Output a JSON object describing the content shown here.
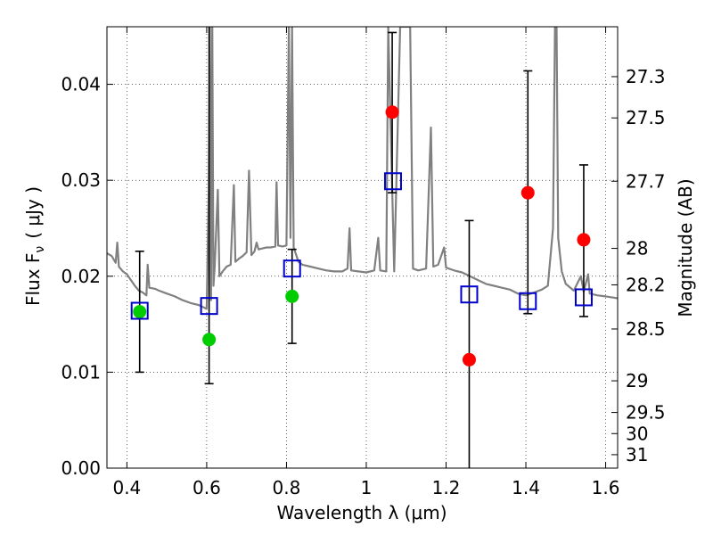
{
  "chart_data": {
    "type": "scatter",
    "xlabel": "Wavelength  λ (μm)",
    "ylabel_left": "Flux  F",
    "ylabel_left_sub": "ν",
    "ylabel_left_unit": "( μJy )",
    "ylabel_right": "Magnitude (AB)",
    "xlim": [
      0.35,
      1.63
    ],
    "ylim": [
      0.0,
      0.046
    ],
    "grid": true,
    "x_ticks": [
      {
        "value": 0.4,
        "label": "0.4"
      },
      {
        "value": 0.6,
        "label": "0.6"
      },
      {
        "value": 0.8,
        "label": "0.8"
      },
      {
        "value": 1.0,
        "label": "1"
      },
      {
        "value": 1.2,
        "label": "1.2"
      },
      {
        "value": 1.4,
        "label": "1.4"
      },
      {
        "value": 1.6,
        "label": "1.6"
      }
    ],
    "y_ticks": [
      {
        "value": 0.0,
        "label": "0.00"
      },
      {
        "value": 0.01,
        "label": "0.01"
      },
      {
        "value": 0.02,
        "label": "0.02"
      },
      {
        "value": 0.03,
        "label": "0.03"
      },
      {
        "value": 0.04,
        "label": "0.04"
      }
    ],
    "right_ticks": [
      {
        "label": "27.3",
        "flux": 0.0408
      },
      {
        "label": "27.5",
        "flux": 0.0365
      },
      {
        "label": "27.7",
        "flux": 0.0299
      },
      {
        "label": "28",
        "flux": 0.0229
      },
      {
        "label": "28.2",
        "flux": 0.0191
      },
      {
        "label": "28.5",
        "flux": 0.0145
      },
      {
        "label": "29",
        "flux": 0.0091
      },
      {
        "label": "29.5",
        "flux": 0.0058
      },
      {
        "label": "30",
        "flux": 0.0036
      },
      {
        "label": "31",
        "flux": 0.0014
      }
    ],
    "series": [
      {
        "kind": "spectrum",
        "color": "#808080",
        "points": [
          [
            0.35,
            0.0224
          ],
          [
            0.362,
            0.0221
          ],
          [
            0.372,
            0.0214
          ],
          [
            0.376,
            0.0235
          ],
          [
            0.38,
            0.021
          ],
          [
            0.39,
            0.0205
          ],
          [
            0.4,
            0.0202
          ],
          [
            0.41,
            0.0196
          ],
          [
            0.42,
            0.019
          ],
          [
            0.43,
            0.0185
          ],
          [
            0.44,
            0.0183
          ],
          [
            0.449,
            0.018
          ],
          [
            0.452,
            0.0212
          ],
          [
            0.456,
            0.0188
          ],
          [
            0.47,
            0.0187
          ],
          [
            0.48,
            0.0185
          ],
          [
            0.5,
            0.0182
          ],
          [
            0.52,
            0.0179
          ],
          [
            0.54,
            0.0175
          ],
          [
            0.56,
            0.0172
          ],
          [
            0.58,
            0.017
          ],
          [
            0.59,
            0.0168
          ],
          [
            0.6,
            0.0166
          ],
          [
            0.605,
            0.029
          ],
          [
            0.608,
            0.046
          ],
          [
            0.611,
            0.0175
          ],
          [
            0.614,
            0.046
          ],
          [
            0.617,
            0.019
          ],
          [
            0.62,
            0.021
          ],
          [
            0.628,
            0.029
          ],
          [
            0.632,
            0.02
          ],
          [
            0.64,
            0.0205
          ],
          [
            0.65,
            0.021
          ],
          [
            0.66,
            0.0212
          ],
          [
            0.668,
            0.0295
          ],
          [
            0.672,
            0.0215
          ],
          [
            0.68,
            0.0218
          ],
          [
            0.69,
            0.0221
          ],
          [
            0.7,
            0.0225
          ],
          [
            0.706,
            0.031
          ],
          [
            0.712,
            0.0222
          ],
          [
            0.72,
            0.0226
          ],
          [
            0.725,
            0.0235
          ],
          [
            0.73,
            0.0228
          ],
          [
            0.74,
            0.0229
          ],
          [
            0.75,
            0.023
          ],
          [
            0.76,
            0.023
          ],
          [
            0.772,
            0.0231
          ],
          [
            0.775,
            0.0298
          ],
          [
            0.779,
            0.0232
          ],
          [
            0.79,
            0.0231
          ],
          [
            0.8,
            0.0232
          ],
          [
            0.806,
            0.046
          ],
          [
            0.81,
            0.024
          ],
          [
            0.814,
            0.046
          ],
          [
            0.818,
            0.023
          ],
          [
            0.83,
            0.0215
          ],
          [
            0.84,
            0.0212
          ],
          [
            0.86,
            0.021
          ],
          [
            0.88,
            0.0208
          ],
          [
            0.9,
            0.0206
          ],
          [
            0.92,
            0.0205
          ],
          [
            0.94,
            0.0205
          ],
          [
            0.953,
            0.0208
          ],
          [
            0.958,
            0.025
          ],
          [
            0.962,
            0.0206
          ],
          [
            0.98,
            0.0205
          ],
          [
            1.0,
            0.0204
          ],
          [
            1.02,
            0.0206
          ],
          [
            1.03,
            0.024
          ],
          [
            1.035,
            0.0206
          ],
          [
            1.05,
            0.0205
          ],
          [
            1.055,
            0.046
          ],
          [
            1.07,
            0.0205
          ],
          [
            1.085,
            0.046
          ],
          [
            1.095,
            0.046
          ],
          [
            1.11,
            0.046
          ],
          [
            1.117,
            0.0208
          ],
          [
            1.13,
            0.0206
          ],
          [
            1.15,
            0.0208
          ],
          [
            1.162,
            0.0355
          ],
          [
            1.168,
            0.021
          ],
          [
            1.18,
            0.0212
          ],
          [
            1.195,
            0.023
          ],
          [
            1.2,
            0.0209
          ],
          [
            1.22,
            0.0206
          ],
          [
            1.24,
            0.0204
          ],
          [
            1.26,
            0.02
          ],
          [
            1.28,
            0.0196
          ],
          [
            1.3,
            0.0192
          ],
          [
            1.32,
            0.019
          ],
          [
            1.34,
            0.0188
          ],
          [
            1.36,
            0.0186
          ],
          [
            1.38,
            0.0182
          ],
          [
            1.4,
            0.018
          ],
          [
            1.42,
            0.0183
          ],
          [
            1.44,
            0.0186
          ],
          [
            1.455,
            0.019
          ],
          [
            1.468,
            0.025
          ],
          [
            1.473,
            0.046
          ],
          [
            1.477,
            0.046
          ],
          [
            1.481,
            0.024
          ],
          [
            1.49,
            0.0205
          ],
          [
            1.5,
            0.0192
          ],
          [
            1.52,
            0.0185
          ],
          [
            1.538,
            0.02
          ],
          [
            1.545,
            0.0184
          ],
          [
            1.556,
            0.0202
          ],
          [
            1.56,
            0.0182
          ],
          [
            1.58,
            0.018
          ],
          [
            1.6,
            0.0179
          ],
          [
            1.63,
            0.0177
          ]
        ]
      },
      {
        "kind": "errorbar_points",
        "color": "#ff0000",
        "marker": "circle",
        "points": [
          {
            "x": 1.065,
            "y": 0.0371,
            "lo": 0.0287,
            "hi": 0.0454
          },
          {
            "x": 1.258,
            "y": 0.0113,
            "lo": 0.0,
            "hi": 0.0258
          },
          {
            "x": 1.405,
            "y": 0.0287,
            "lo": 0.0161,
            "hi": 0.0414
          },
          {
            "x": 1.545,
            "y": 0.0238,
            "lo": 0.0158,
            "hi": 0.0316
          }
        ]
      },
      {
        "kind": "errorbar_points",
        "color": "#00cc00",
        "marker": "circle",
        "points": [
          {
            "x": 0.432,
            "y": 0.0163,
            "lo": 0.01,
            "hi": 0.0226
          },
          {
            "x": 0.606,
            "y": 0.0134,
            "lo": 0.0088,
            "hi": null
          },
          {
            "x": 0.814,
            "y": 0.0179,
            "lo": 0.013,
            "hi": 0.0228
          }
        ]
      },
      {
        "kind": "open_squares",
        "color": "#0000cc",
        "points": [
          [
            0.432,
            0.0164
          ],
          [
            0.606,
            0.0169
          ],
          [
            0.814,
            0.0208
          ],
          [
            1.067,
            0.0299
          ],
          [
            1.258,
            0.0181
          ],
          [
            1.405,
            0.0174
          ],
          [
            1.545,
            0.0178
          ]
        ]
      }
    ]
  }
}
